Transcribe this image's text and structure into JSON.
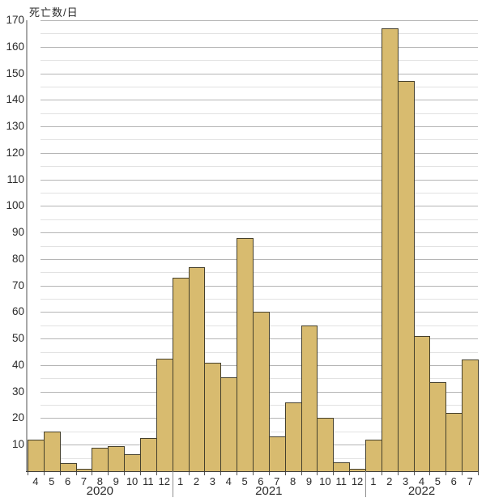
{
  "title": "死亡数/日",
  "chart_data": {
    "type": "bar",
    "title": "",
    "ylabel": "死亡数/日",
    "xlabel": "",
    "ylim": [
      0,
      170
    ],
    "y_tick_step": 10,
    "y_minor_grid_step": 5,
    "grid": true,
    "legend": false,
    "y_tick_labels": [
      "10",
      "20",
      "30",
      "40",
      "50",
      "60",
      "70",
      "80",
      "90",
      "100",
      "110",
      "120",
      "130",
      "140",
      "150",
      "160",
      "170"
    ],
    "categories": [
      "4",
      "5",
      "6",
      "7",
      "8",
      "9",
      "10",
      "11",
      "12",
      "1",
      "2",
      "3",
      "4",
      "5",
      "6",
      "7",
      "8",
      "9",
      "10",
      "11",
      "12",
      "1",
      "2",
      "3",
      "4",
      "5",
      "6",
      "7"
    ],
    "values": [
      12,
      15,
      3,
      1,
      9,
      9.5,
      6.5,
      12.5,
      42.5,
      73,
      77,
      41,
      35.5,
      88,
      60,
      13,
      26,
      55,
      20,
      3.5,
      1,
      12,
      167,
      147,
      51,
      33.5,
      22,
      42
    ],
    "year_groups": [
      {
        "label": "2020",
        "start": 0,
        "count": 9
      },
      {
        "label": "2021",
        "start": 9,
        "count": 12
      },
      {
        "label": "2022",
        "start": 21,
        "count": 7
      }
    ],
    "series_by_year": [
      {
        "name": "2020",
        "months": [
          "4",
          "5",
          "6",
          "7",
          "8",
          "9",
          "10",
          "11",
          "12"
        ],
        "values": [
          12,
          15,
          3,
          1,
          9,
          9.5,
          6.5,
          12.5,
          42.5
        ]
      },
      {
        "name": "2021",
        "months": [
          "1",
          "2",
          "3",
          "4",
          "5",
          "6",
          "7",
          "8",
          "9",
          "10",
          "11",
          "12"
        ],
        "values": [
          73,
          77,
          41,
          35.5,
          88,
          60,
          13,
          26,
          55,
          20,
          3.5,
          1
        ]
      },
      {
        "name": "2022",
        "months": [
          "1",
          "2",
          "3",
          "4",
          "5",
          "6",
          "7"
        ],
        "values": [
          12,
          167,
          147,
          51,
          33.5,
          22,
          42
        ]
      }
    ],
    "colors": {
      "background": "#ffffff",
      "bar_fill": "#d8bb6f",
      "bar_border": "#45402c",
      "grid_major": "#b5b5b5",
      "grid_minor": "#e2e2e2",
      "axis": "#a8a8a8",
      "baseline": "#3c3c3c",
      "text": "#2b2b2b"
    }
  }
}
